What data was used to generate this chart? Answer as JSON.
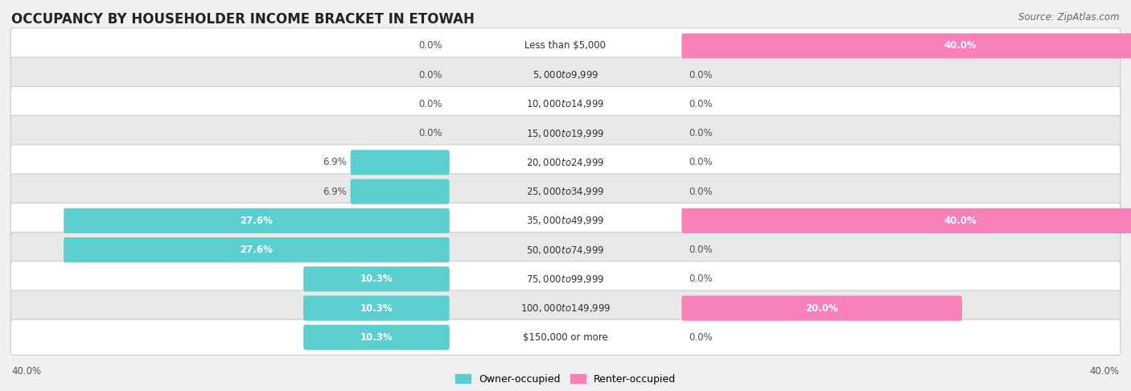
{
  "title": "OCCUPANCY BY HOUSEHOLDER INCOME BRACKET IN ETOWAH",
  "source": "Source: ZipAtlas.com",
  "categories": [
    "Less than $5,000",
    "$5,000 to $9,999",
    "$10,000 to $14,999",
    "$15,000 to $19,999",
    "$20,000 to $24,999",
    "$25,000 to $34,999",
    "$35,000 to $49,999",
    "$50,000 to $74,999",
    "$75,000 to $99,999",
    "$100,000 to $149,999",
    "$150,000 or more"
  ],
  "owner_values": [
    0.0,
    0.0,
    0.0,
    0.0,
    6.9,
    6.9,
    27.6,
    27.6,
    10.3,
    10.3,
    10.3
  ],
  "renter_values": [
    40.0,
    0.0,
    0.0,
    0.0,
    0.0,
    0.0,
    40.0,
    0.0,
    0.0,
    20.0,
    0.0
  ],
  "owner_color": "#5BCFCF",
  "renter_color": "#F980B8",
  "owner_label": "Owner-occupied",
  "renter_label": "Renter-occupied",
  "max_val": 40.0,
  "bar_height": 0.62,
  "bg_color": "#f0f0f0",
  "row_color_even": "#ffffff",
  "row_color_odd": "#e8e8e8",
  "title_fontsize": 12,
  "cat_fontsize": 8.5,
  "val_fontsize": 8.5,
  "source_fontsize": 8.5,
  "legend_fontsize": 9
}
